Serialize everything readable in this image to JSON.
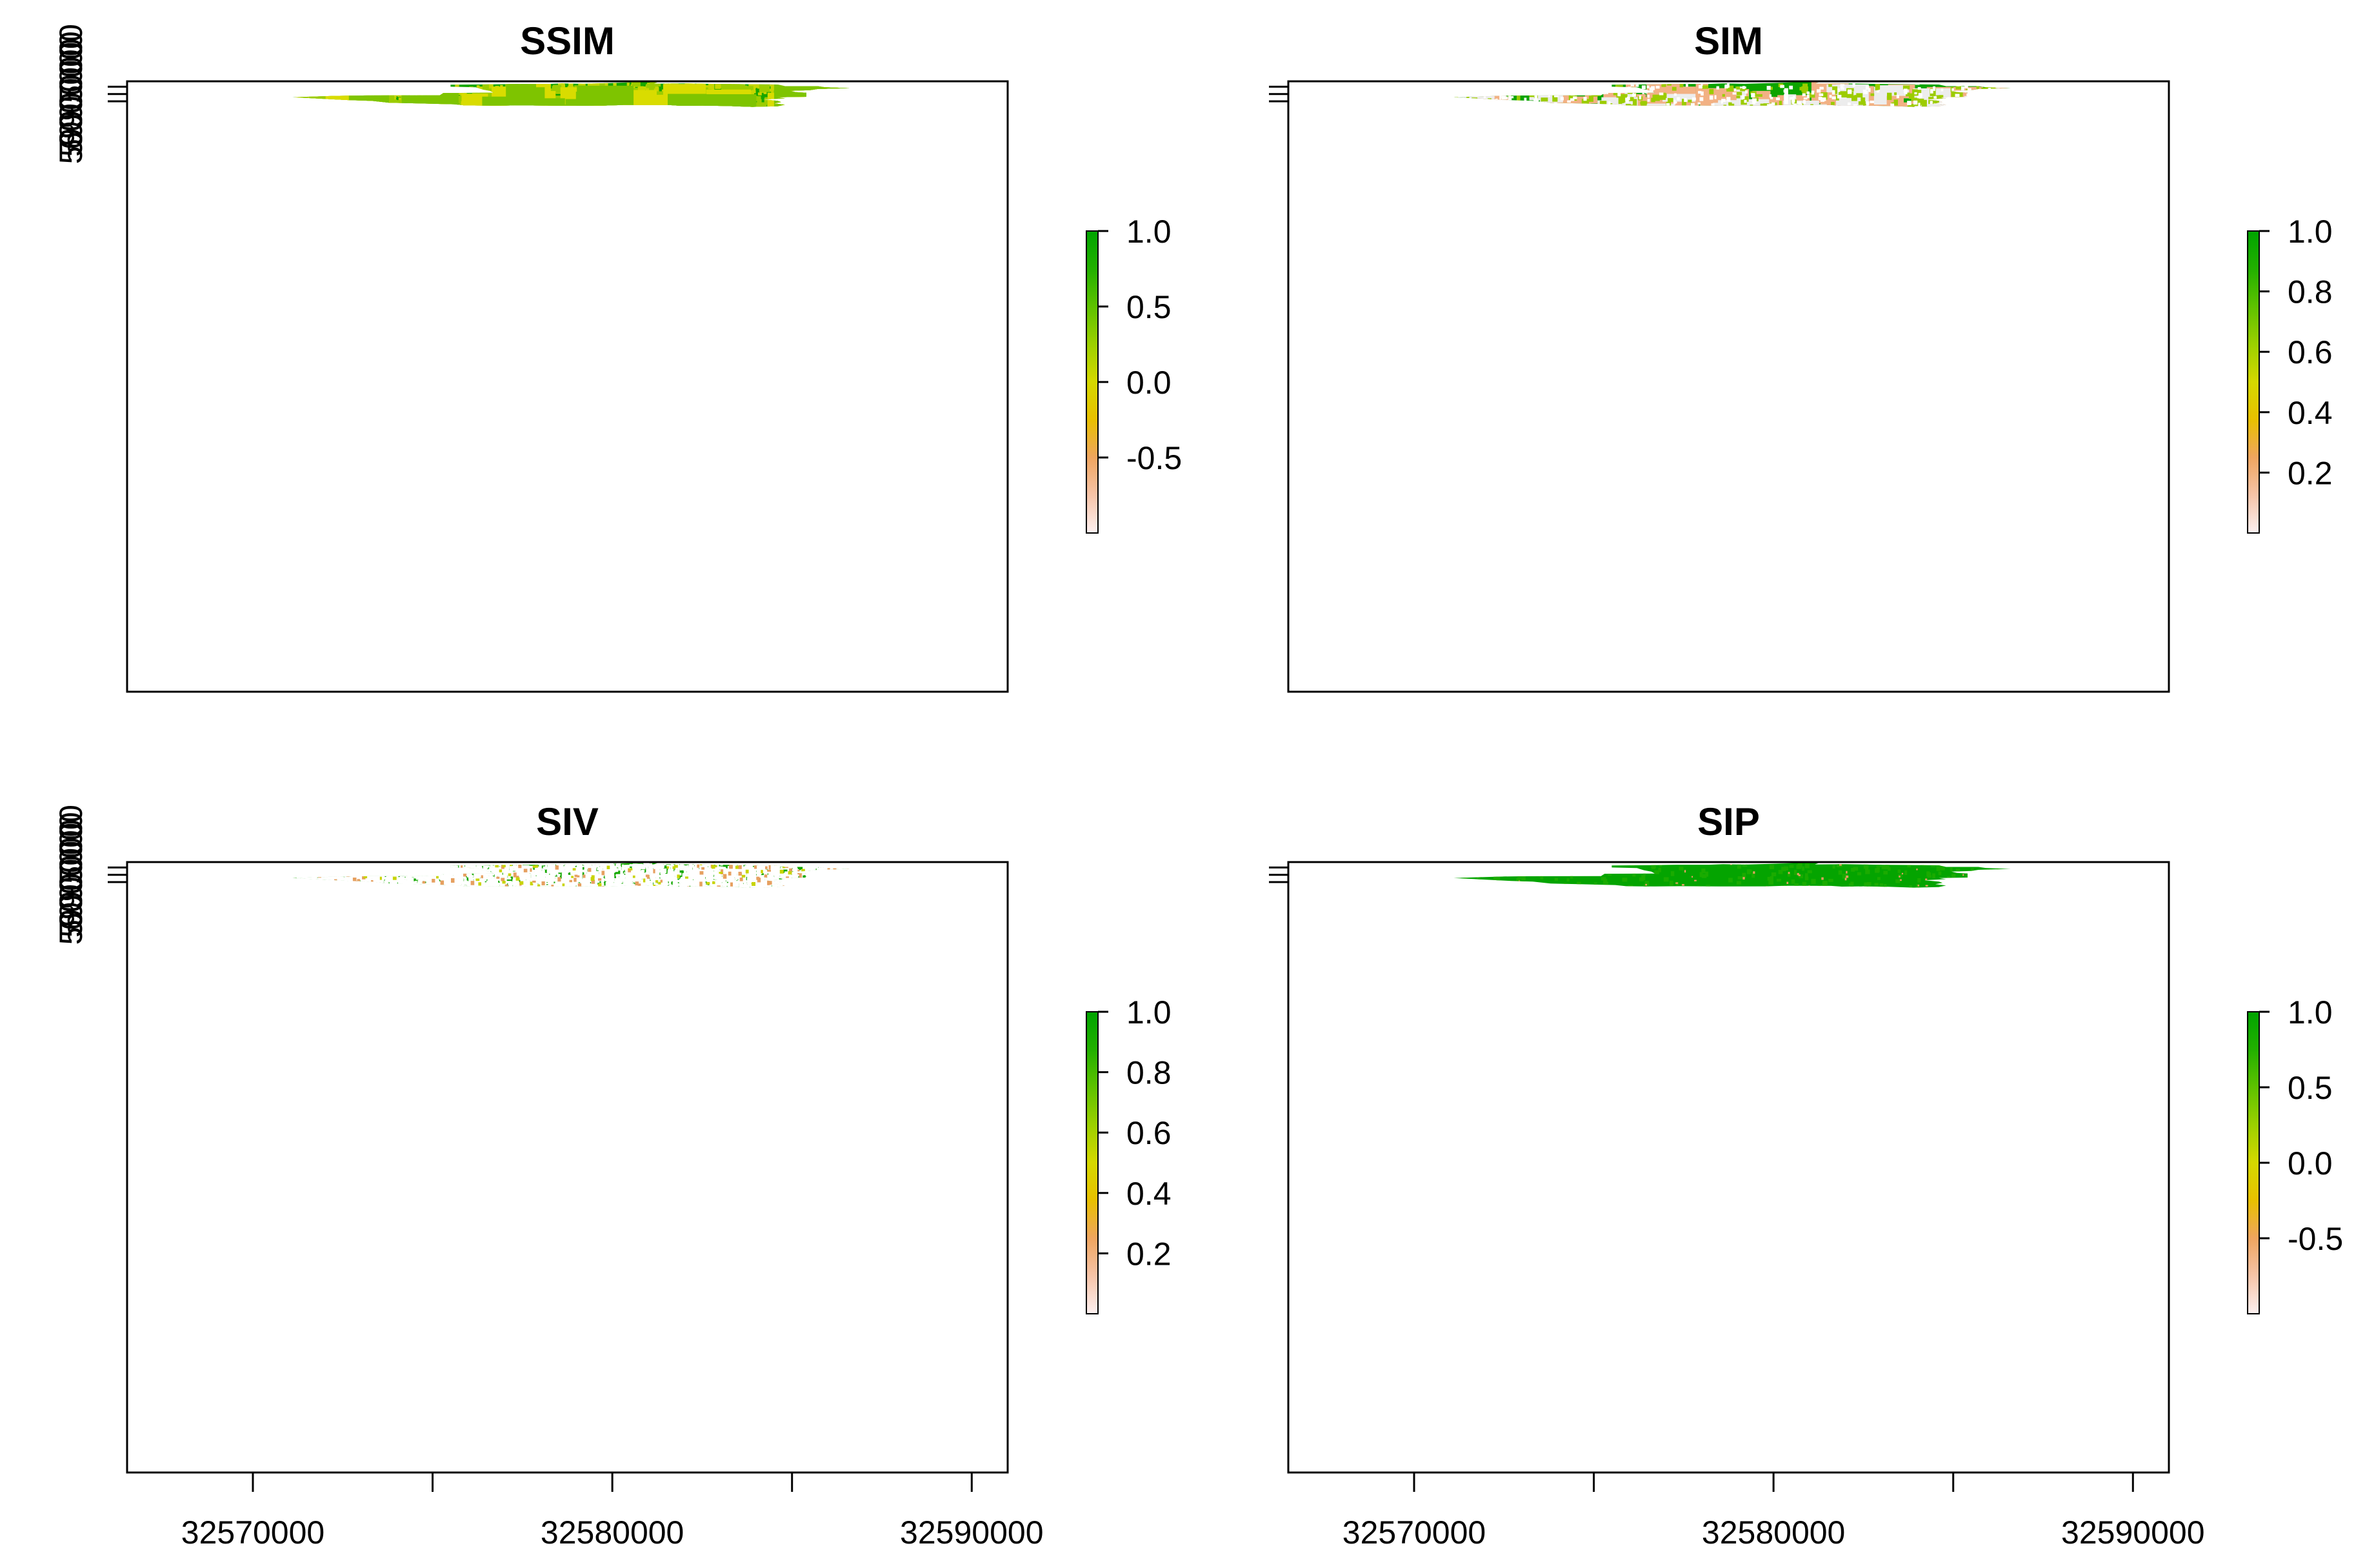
{
  "figure": {
    "panel_count": 4,
    "layout": "2x2"
  },
  "chart_data": [
    {
      "type": "heatmap",
      "title": "SSIM",
      "xlabel": "",
      "ylabel": "",
      "xlim": [
        32566500,
        32591000
      ],
      "ylim": [
        5586000,
        6003700
      ],
      "x_ticks": [
        32570000,
        32575000,
        32580000,
        32585000,
        32590000
      ],
      "x_tick_labels": [],
      "y_ticks": [
        5990000,
        5995000,
        6000000
      ],
      "y_tick_labels": [
        "5990000",
        "5995000",
        "6000000"
      ],
      "legend": {
        "placement": "right",
        "range": [
          -1.0,
          1.0
        ],
        "ticks": [
          1.0,
          0.5,
          0.0,
          -0.5
        ],
        "tick_labels": [
          "1.0",
          "0.5",
          "0.0",
          "-0.5"
        ],
        "colors": [
          "#fdf0f0",
          "#f6c4a8",
          "#efa55f",
          "#e8c000",
          "#d5d800",
          "#9cd000",
          "#5ec200",
          "#22b000",
          "#00a400"
        ]
      },
      "values": {
        "dominant_range": [
          0.0,
          1.0
        ],
        "dominant_color": "#17a600",
        "secondary_color": "#c8d400"
      }
    },
    {
      "type": "heatmap",
      "title": "SIM",
      "xlabel": "",
      "ylabel": "",
      "xlim": [
        32566500,
        32591000
      ],
      "ylim": [
        5586000,
        6003700
      ],
      "x_ticks": [
        32570000,
        32575000,
        32580000,
        32585000,
        32590000
      ],
      "x_tick_labels": [],
      "y_ticks": [
        5990000,
        5995000,
        6000000
      ],
      "y_tick_labels": [],
      "legend": {
        "placement": "right",
        "range": [
          0.0,
          1.0
        ],
        "ticks": [
          1.0,
          0.8,
          0.6,
          0.4,
          0.2
        ],
        "tick_labels": [
          "1.0",
          "0.8",
          "0.6",
          "0.4",
          "0.2"
        ],
        "colors": [
          "#fdf0f0",
          "#f6c4a8",
          "#efa55f",
          "#e8c000",
          "#d5d800",
          "#9cd000",
          "#5ec200",
          "#22b000",
          "#00a400"
        ]
      },
      "values": {
        "dominant_range": [
          0.7,
          1.0
        ],
        "dominant_color": "#0ca400",
        "secondary_color": "#f2b184"
      }
    },
    {
      "type": "heatmap",
      "title": "SIV",
      "xlabel": "",
      "ylabel": "",
      "xlim": [
        32566500,
        32591000
      ],
      "ylim": [
        5586000,
        6003700
      ],
      "x_ticks": [
        32570000,
        32575000,
        32580000,
        32585000,
        32590000
      ],
      "x_tick_labels": [
        "32570000",
        "",
        "32580000",
        "",
        "32590000"
      ],
      "y_ticks": [
        5990000,
        5995000,
        6000000
      ],
      "y_tick_labels": [
        "5990000",
        "5995000",
        "6000000"
      ],
      "legend": {
        "placement": "right",
        "range": [
          0.0,
          1.0
        ],
        "ticks": [
          1.0,
          0.8,
          0.6,
          0.4,
          0.2
        ],
        "tick_labels": [
          "1.0",
          "0.8",
          "0.6",
          "0.4",
          "0.2"
        ],
        "colors": [
          "#fdf0f0",
          "#f6c4a8",
          "#efa55f",
          "#e8c000",
          "#d5d800",
          "#9cd000",
          "#5ec200",
          "#22b000",
          "#00a400"
        ]
      },
      "values": {
        "dominant_range": [
          0.8,
          1.0
        ],
        "dominant_color": "#14a800",
        "secondary_color": "#ffffff"
      }
    },
    {
      "type": "heatmap",
      "title": "SIP",
      "xlabel": "",
      "ylabel": "",
      "xlim": [
        32566500,
        32591000
      ],
      "ylim": [
        5586000,
        6003700
      ],
      "x_ticks": [
        32570000,
        32575000,
        32580000,
        32585000,
        32590000
      ],
      "x_tick_labels": [
        "32570000",
        "",
        "32580000",
        "",
        "32590000"
      ],
      "y_ticks": [
        5990000,
        5995000,
        6000000
      ],
      "y_tick_labels": [],
      "legend": {
        "placement": "right",
        "range": [
          -1.0,
          1.0
        ],
        "ticks": [
          1.0,
          0.5,
          0.0,
          -0.5
        ],
        "tick_labels": [
          "1.0",
          "0.5",
          "0.0",
          "-0.5"
        ],
        "colors": [
          "#fdf0f0",
          "#f6c4a8",
          "#efa55f",
          "#e8c000",
          "#d5d800",
          "#9cd000",
          "#5ec200",
          "#22b000",
          "#00a400"
        ]
      },
      "values": {
        "dominant_range": [
          0.9,
          1.0
        ],
        "dominant_color": "#04a400",
        "secondary_color": "#1aab00"
      }
    }
  ]
}
